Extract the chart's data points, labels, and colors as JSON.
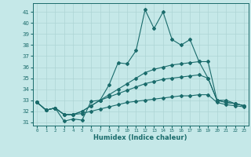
{
  "xlabel": "Humidex (Indice chaleur)",
  "background_color": "#c5e8e8",
  "grid_color": "#add4d4",
  "line_color": "#1a6b6b",
  "xlim": [
    -0.5,
    23.5
  ],
  "ylim": [
    30.7,
    41.8
  ],
  "yticks": [
    31,
    32,
    33,
    34,
    35,
    36,
    37,
    38,
    39,
    40,
    41
  ],
  "xticks": [
    0,
    1,
    2,
    3,
    4,
    5,
    6,
    7,
    8,
    9,
    10,
    11,
    12,
    13,
    14,
    15,
    16,
    17,
    18,
    19,
    20,
    21,
    22,
    23
  ],
  "xtick_labels": [
    "0",
    "1",
    "2",
    "3",
    "4",
    "5",
    "6",
    "7",
    "8",
    "9",
    "10",
    "11",
    "12",
    "13",
    "14",
    "15",
    "16",
    "17",
    "18",
    "19",
    "20",
    "21",
    "22",
    "23"
  ],
  "series": [
    [
      32.8,
      32.1,
      32.3,
      31.1,
      31.3,
      31.2,
      32.9,
      33.0,
      34.4,
      36.4,
      36.3,
      37.5,
      41.2,
      39.5,
      41.0,
      38.5,
      38.0,
      38.5,
      36.5,
      35.0,
      33.0,
      33.0,
      32.7,
      32.5
    ],
    [
      32.8,
      32.1,
      32.3,
      31.7,
      31.7,
      32.0,
      32.5,
      33.0,
      33.5,
      34.0,
      34.5,
      35.0,
      35.5,
      35.8,
      36.0,
      36.2,
      36.3,
      36.4,
      36.5,
      36.5,
      33.0,
      32.8,
      32.7,
      32.5
    ],
    [
      32.8,
      32.1,
      32.3,
      31.7,
      31.7,
      32.0,
      32.5,
      33.0,
      33.3,
      33.6,
      33.9,
      34.2,
      34.5,
      34.7,
      34.9,
      35.0,
      35.1,
      35.2,
      35.3,
      35.0,
      33.0,
      32.8,
      32.7,
      32.5
    ],
    [
      32.8,
      32.1,
      32.3,
      31.7,
      31.7,
      31.8,
      32.0,
      32.2,
      32.4,
      32.6,
      32.8,
      32.9,
      33.0,
      33.1,
      33.2,
      33.3,
      33.4,
      33.4,
      33.5,
      33.5,
      32.8,
      32.6,
      32.5,
      32.4
    ]
  ]
}
